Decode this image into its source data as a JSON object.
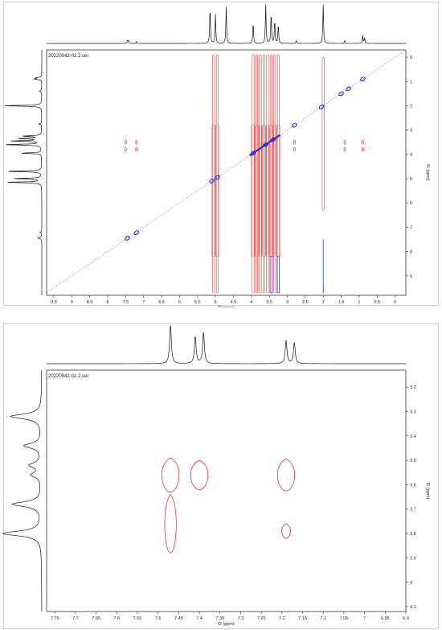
{
  "chart_data": [
    {
      "type": "heatmap",
      "title": "20220942-02.2.ser",
      "xlabel": "f2 (ppm)",
      "ylabel": "f1 (ppm)",
      "xlim": [
        9.7,
        -0.3
      ],
      "ylim": [
        -0.3,
        9.8
      ],
      "x_ticks": [
        9.5,
        9.0,
        8.5,
        8.0,
        7.5,
        7.0,
        6.5,
        6.0,
        5.5,
        5.0,
        4.5,
        4.0,
        3.5,
        3.0,
        2.5,
        2.0,
        1.5,
        1.0,
        0.5,
        0.0
      ],
      "y_ticks": [
        0,
        1,
        2,
        3,
        4,
        5,
        6,
        7,
        8,
        9
      ],
      "colors": {
        "positive": "#1f2fd6",
        "negative": "#e01a1a"
      },
      "proton_1d_peaks": [
        {
          "ppm": 7.45,
          "height": 0.08
        },
        {
          "ppm": 7.42,
          "height": 0.07
        },
        {
          "ppm": 7.2,
          "height": 0.05
        },
        {
          "ppm": 5.15,
          "height": 0.95
        },
        {
          "ppm": 5.0,
          "height": 0.75
        },
        {
          "ppm": 4.7,
          "height": 0.95
        },
        {
          "ppm": 3.95,
          "height": 0.55
        },
        {
          "ppm": 3.6,
          "height": 1.0
        },
        {
          "ppm": 3.45,
          "height": 0.8
        },
        {
          "ppm": 3.35,
          "height": 0.6
        },
        {
          "ppm": 3.25,
          "height": 0.5
        },
        {
          "ppm": 2.75,
          "height": 0.08
        },
        {
          "ppm": 2.0,
          "height": 1.0
        },
        {
          "ppm": 1.4,
          "height": 0.07
        },
        {
          "ppm": 0.9,
          "height": 0.2
        },
        {
          "ppm": 0.85,
          "height": 0.15
        }
      ],
      "positive_cross_peaks": [
        {
          "f2": 7.45,
          "f1": 7.45
        },
        {
          "f2": 7.2,
          "f1": 7.22
        },
        {
          "f2": 5.1,
          "f1": 5.1
        },
        {
          "f2": 4.95,
          "f1": 4.95
        },
        {
          "f2": 3.95,
          "f1": 3.95
        },
        {
          "f2": 3.6,
          "f1": 3.6
        },
        {
          "f2": 3.4,
          "f1": 3.4
        },
        {
          "f2": 2.8,
          "f1": 2.8
        },
        {
          "f2": 2.05,
          "f1": 2.05
        },
        {
          "f2": 1.5,
          "f1": 1.5
        },
        {
          "f2": 1.3,
          "f1": 1.3
        },
        {
          "f2": 0.9,
          "f1": 0.9
        }
      ],
      "negative_streaks_f2": [
        5.05,
        4.95,
        3.95,
        3.85,
        3.75,
        3.65,
        3.55,
        3.45,
        3.35,
        3.25,
        2.0
      ],
      "negative_cross_peaks": [
        {
          "f2": 7.5,
          "f1": 3.5
        },
        {
          "f2": 7.5,
          "f1": 3.8
        },
        {
          "f2": 7.2,
          "f1": 3.5
        },
        {
          "f2": 7.2,
          "f1": 3.8
        },
        {
          "f2": 2.8,
          "f1": 3.5
        },
        {
          "f2": 2.8,
          "f1": 3.8
        },
        {
          "f2": 1.4,
          "f1": 3.5
        },
        {
          "f2": 1.4,
          "f1": 3.8
        },
        {
          "f2": 0.9,
          "f1": 3.5
        },
        {
          "f2": 0.9,
          "f1": 3.8
        }
      ]
    },
    {
      "type": "heatmap",
      "title": "20220942-02.2.ser",
      "xlabel": "f2 (ppm)",
      "ylabel": "f1 (ppm)",
      "xlim": [
        7.77,
        6.9
      ],
      "ylim": [
        3.13,
        4.12
      ],
      "x_ticks": [
        7.75,
        7.7,
        7.65,
        7.6,
        7.55,
        7.5,
        7.45,
        7.4,
        7.35,
        7.3,
        7.25,
        7.2,
        7.15,
        7.1,
        7.05,
        7.0,
        6.95,
        6.9
      ],
      "y_ticks": [
        3.2,
        3.3,
        3.4,
        3.5,
        3.6,
        3.7,
        3.8,
        3.9,
        4.0,
        4.1
      ],
      "colors": {
        "negative": "#e01a1a"
      },
      "f2_1d_peaks": [
        {
          "ppm": 7.47,
          "height": 1.0
        },
        {
          "ppm": 7.41,
          "height": 0.7
        },
        {
          "ppm": 7.39,
          "height": 0.8
        },
        {
          "ppm": 7.19,
          "height": 0.6
        },
        {
          "ppm": 7.17,
          "height": 0.55
        }
      ],
      "f1_1d_peaks": [
        {
          "ppm": 3.32,
          "height": 0.8
        },
        {
          "ppm": 3.44,
          "height": 0.45
        },
        {
          "ppm": 3.52,
          "height": 0.3
        },
        {
          "ppm": 3.56,
          "height": 0.25
        },
        {
          "ppm": 3.68,
          "height": 0.75
        },
        {
          "ppm": 3.8,
          "height": 1.0
        }
      ],
      "negative_cross_peaks": [
        {
          "f2": 7.47,
          "f1": 3.56,
          "w2": 0.024,
          "w1": 0.07
        },
        {
          "f2": 7.4,
          "f1": 3.56,
          "w2": 0.024,
          "w1": 0.06
        },
        {
          "f2": 7.19,
          "f1": 3.56,
          "w2": 0.024,
          "w1": 0.065
        },
        {
          "f2": 7.47,
          "f1": 3.76,
          "w2": 0.016,
          "w1": 0.12
        },
        {
          "f2": 7.19,
          "f1": 3.79,
          "w2": 0.012,
          "w1": 0.03
        }
      ]
    }
  ]
}
